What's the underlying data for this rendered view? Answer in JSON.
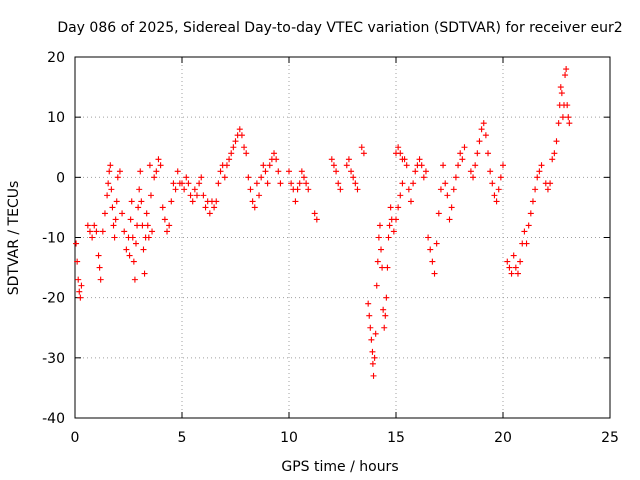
{
  "chart_data": {
    "type": "scatter",
    "title": "Day 086 of 2025, Sidereal Day-to-day VTEC variation (SDTVAR) for receiver eur2",
    "xlabel": "GPS time / hours",
    "ylabel": "SDTVAR / TECUs",
    "xlim": [
      0,
      25
    ],
    "ylim": [
      -40,
      20
    ],
    "xticks": [
      0,
      5,
      10,
      15,
      20,
      25
    ],
    "yticks": [
      -40,
      -30,
      -20,
      -10,
      0,
      10,
      20
    ],
    "xtick_labels": [
      "0",
      "5",
      "10",
      "15",
      "20",
      "25"
    ],
    "ytick_labels": [
      "-40",
      "-30",
      "-20",
      "-10",
      "0",
      "10",
      "20"
    ],
    "grid": true,
    "marker": "+",
    "color": "#ff0000",
    "series": [
      {
        "name": "eur2",
        "points": [
          [
            0.05,
            -11
          ],
          [
            0.1,
            -14
          ],
          [
            0.15,
            -17
          ],
          [
            0.2,
            -19
          ],
          [
            0.25,
            -20
          ],
          [
            0.3,
            -18
          ],
          [
            0.6,
            -8
          ],
          [
            0.7,
            -9
          ],
          [
            0.8,
            -10
          ],
          [
            0.9,
            -8
          ],
          [
            1.0,
            -9
          ],
          [
            1.1,
            -13
          ],
          [
            1.15,
            -15
          ],
          [
            1.2,
            -17
          ],
          [
            1.3,
            -9
          ],
          [
            1.4,
            -6
          ],
          [
            1.5,
            -3
          ],
          [
            1.55,
            -1
          ],
          [
            1.6,
            1
          ],
          [
            1.65,
            2
          ],
          [
            1.7,
            -2
          ],
          [
            1.75,
            -5
          ],
          [
            1.8,
            -8
          ],
          [
            1.85,
            -10
          ],
          [
            1.9,
            -7
          ],
          [
            1.95,
            -4
          ],
          [
            2.0,
            0
          ],
          [
            2.1,
            1
          ],
          [
            2.2,
            -6
          ],
          [
            2.3,
            -9
          ],
          [
            2.4,
            -12
          ],
          [
            2.5,
            -10
          ],
          [
            2.55,
            -13
          ],
          [
            2.6,
            -7
          ],
          [
            2.65,
            -4
          ],
          [
            2.7,
            -10
          ],
          [
            2.75,
            -14
          ],
          [
            2.8,
            -17
          ],
          [
            2.85,
            -11
          ],
          [
            2.9,
            -8
          ],
          [
            2.95,
            -5
          ],
          [
            3.0,
            -2
          ],
          [
            3.05,
            1
          ],
          [
            3.1,
            -4
          ],
          [
            3.15,
            -8
          ],
          [
            3.2,
            -12
          ],
          [
            3.25,
            -16
          ],
          [
            3.3,
            -10
          ],
          [
            3.35,
            -6
          ],
          [
            3.4,
            -8
          ],
          [
            3.45,
            -10
          ],
          [
            3.5,
            2
          ],
          [
            3.55,
            -3
          ],
          [
            3.6,
            -9
          ],
          [
            3.7,
            0
          ],
          [
            3.8,
            1
          ],
          [
            3.9,
            3
          ],
          [
            4.0,
            2
          ],
          [
            4.1,
            -5
          ],
          [
            4.2,
            -7
          ],
          [
            4.3,
            -9
          ],
          [
            4.4,
            -8
          ],
          [
            4.5,
            -4
          ],
          [
            4.6,
            -1
          ],
          [
            4.7,
            -2
          ],
          [
            4.8,
            1
          ],
          [
            4.9,
            -1
          ],
          [
            5.0,
            -1
          ],
          [
            5.1,
            -2
          ],
          [
            5.2,
            0
          ],
          [
            5.3,
            -1
          ],
          [
            5.4,
            -3
          ],
          [
            5.5,
            -4
          ],
          [
            5.6,
            -2
          ],
          [
            5.7,
            -3
          ],
          [
            5.8,
            -1
          ],
          [
            5.9,
            0
          ],
          [
            6.0,
            -3
          ],
          [
            6.1,
            -5
          ],
          [
            6.2,
            -4
          ],
          [
            6.3,
            -6
          ],
          [
            6.4,
            -4
          ],
          [
            6.5,
            -5
          ],
          [
            6.6,
            -4
          ],
          [
            6.7,
            -1
          ],
          [
            6.8,
            1
          ],
          [
            6.9,
            2
          ],
          [
            7.0,
            0
          ],
          [
            7.1,
            2
          ],
          [
            7.2,
            3
          ],
          [
            7.3,
            4
          ],
          [
            7.4,
            5
          ],
          [
            7.5,
            6
          ],
          [
            7.6,
            7
          ],
          [
            7.7,
            8
          ],
          [
            7.8,
            7
          ],
          [
            7.9,
            5
          ],
          [
            8.0,
            4
          ],
          [
            8.1,
            0
          ],
          [
            8.2,
            -2
          ],
          [
            8.3,
            -4
          ],
          [
            8.4,
            -5
          ],
          [
            8.5,
            -1
          ],
          [
            8.6,
            -3
          ],
          [
            8.7,
            0
          ],
          [
            8.8,
            2
          ],
          [
            8.9,
            1
          ],
          [
            9.0,
            -1
          ],
          [
            9.1,
            2
          ],
          [
            9.2,
            3
          ],
          [
            9.3,
            4
          ],
          [
            9.4,
            3
          ],
          [
            9.5,
            1
          ],
          [
            9.6,
            -1
          ],
          [
            10.0,
            1
          ],
          [
            10.1,
            -1
          ],
          [
            10.2,
            -2
          ],
          [
            10.3,
            -4
          ],
          [
            10.4,
            -2
          ],
          [
            10.5,
            -1
          ],
          [
            10.6,
            1
          ],
          [
            10.7,
            0
          ],
          [
            10.8,
            -1
          ],
          [
            10.9,
            -2
          ],
          [
            11.2,
            -6
          ],
          [
            11.3,
            -7
          ],
          [
            12.0,
            3
          ],
          [
            12.1,
            2
          ],
          [
            12.2,
            1
          ],
          [
            12.3,
            -1
          ],
          [
            12.4,
            -2
          ],
          [
            12.7,
            2
          ],
          [
            12.8,
            3
          ],
          [
            12.9,
            1
          ],
          [
            13.0,
            0
          ],
          [
            13.1,
            -1
          ],
          [
            13.2,
            -2
          ],
          [
            13.4,
            5
          ],
          [
            13.5,
            4
          ],
          [
            13.7,
            -21
          ],
          [
            13.75,
            -23
          ],
          [
            13.8,
            -25
          ],
          [
            13.85,
            -27
          ],
          [
            13.9,
            -29
          ],
          [
            13.92,
            -31
          ],
          [
            13.95,
            -33
          ],
          [
            14.0,
            -30
          ],
          [
            14.05,
            -26
          ],
          [
            14.1,
            -18
          ],
          [
            14.15,
            -14
          ],
          [
            14.2,
            -10
          ],
          [
            14.25,
            -8
          ],
          [
            14.3,
            -12
          ],
          [
            14.35,
            -15
          ],
          [
            14.4,
            -22
          ],
          [
            14.45,
            -25
          ],
          [
            14.5,
            -23
          ],
          [
            14.55,
            -20
          ],
          [
            14.6,
            -15
          ],
          [
            14.65,
            -10
          ],
          [
            14.7,
            -8
          ],
          [
            14.75,
            -5
          ],
          [
            14.8,
            -7
          ],
          [
            14.9,
            -9
          ],
          [
            15.0,
            -7
          ],
          [
            15.1,
            -5
          ],
          [
            15.2,
            -3
          ],
          [
            15.3,
            -1
          ],
          [
            15.0,
            4
          ],
          [
            15.1,
            5
          ],
          [
            15.2,
            4
          ],
          [
            15.3,
            3
          ],
          [
            15.4,
            3
          ],
          [
            15.5,
            2
          ],
          [
            15.6,
            -2
          ],
          [
            15.7,
            -4
          ],
          [
            15.8,
            -1
          ],
          [
            15.9,
            1
          ],
          [
            16.0,
            2
          ],
          [
            16.1,
            3
          ],
          [
            16.2,
            2
          ],
          [
            16.3,
            0
          ],
          [
            16.4,
            1
          ],
          [
            16.5,
            -10
          ],
          [
            16.6,
            -12
          ],
          [
            16.7,
            -14
          ],
          [
            16.8,
            -16
          ],
          [
            16.9,
            -11
          ],
          [
            17.0,
            -6
          ],
          [
            17.1,
            -2
          ],
          [
            17.2,
            2
          ],
          [
            17.3,
            -1
          ],
          [
            17.4,
            -3
          ],
          [
            17.5,
            -7
          ],
          [
            17.6,
            -5
          ],
          [
            17.7,
            -2
          ],
          [
            17.8,
            0
          ],
          [
            17.9,
            2
          ],
          [
            18.0,
            4
          ],
          [
            18.1,
            3
          ],
          [
            18.2,
            5
          ],
          [
            18.5,
            1
          ],
          [
            18.6,
            0
          ],
          [
            18.7,
            2
          ],
          [
            18.8,
            4
          ],
          [
            18.9,
            6
          ],
          [
            19.0,
            8
          ],
          [
            19.1,
            9
          ],
          [
            19.2,
            7
          ],
          [
            19.3,
            4
          ],
          [
            19.4,
            1
          ],
          [
            19.5,
            -1
          ],
          [
            19.6,
            -3
          ],
          [
            19.7,
            -4
          ],
          [
            19.8,
            -2
          ],
          [
            19.9,
            0
          ],
          [
            20.0,
            2
          ],
          [
            20.2,
            -14
          ],
          [
            20.3,
            -15
          ],
          [
            20.4,
            -16
          ],
          [
            20.5,
            -13
          ],
          [
            20.6,
            -15
          ],
          [
            20.7,
            -16
          ],
          [
            20.8,
            -14
          ],
          [
            20.9,
            -11
          ],
          [
            21.0,
            -9
          ],
          [
            21.1,
            -11
          ],
          [
            21.2,
            -8
          ],
          [
            21.3,
            -6
          ],
          [
            21.4,
            -4
          ],
          [
            21.5,
            -2
          ],
          [
            21.6,
            0
          ],
          [
            21.7,
            1
          ],
          [
            21.8,
            2
          ],
          [
            22.0,
            -1
          ],
          [
            22.1,
            -2
          ],
          [
            22.2,
            -1
          ],
          [
            22.3,
            3
          ],
          [
            22.4,
            4
          ],
          [
            22.5,
            6
          ],
          [
            22.6,
            9
          ],
          [
            22.65,
            12
          ],
          [
            22.7,
            15
          ],
          [
            22.75,
            14
          ],
          [
            22.8,
            10
          ],
          [
            22.85,
            12
          ],
          [
            22.9,
            17
          ],
          [
            22.95,
            18
          ],
          [
            23.0,
            12
          ],
          [
            23.05,
            10
          ],
          [
            23.1,
            9
          ]
        ]
      }
    ]
  }
}
